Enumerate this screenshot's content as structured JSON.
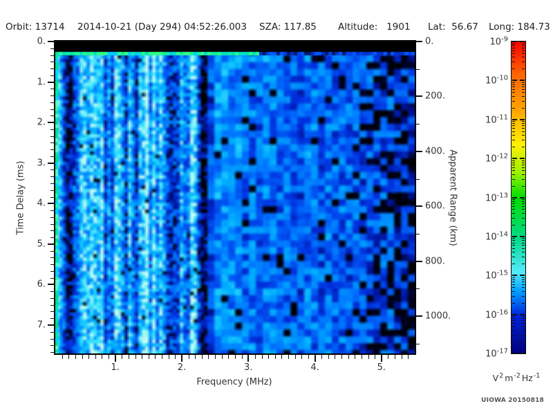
{
  "header": {
    "orbit": "Orbit: 13714",
    "datetime": "2014-10-21 (Day 294) 04:52:26.003",
    "sza": "SZA: 117.85",
    "altitude": "Altitude:   1901",
    "lat": "Lat:  56.67",
    "long": "Long: 184.73"
  },
  "axes": {
    "x": {
      "label": "Frequency (MHz)",
      "ticks": [
        "1.",
        "2.",
        "3.",
        "4.",
        "5."
      ],
      "tick_values": [
        1,
        2,
        3,
        4,
        5
      ],
      "range": [
        0.1,
        5.5
      ],
      "minor_step": 0.1
    },
    "y_left": {
      "label": "Time Delay (ms)",
      "ticks": [
        "0.",
        "1.",
        "2.",
        "3.",
        "4.",
        "5.",
        "6.",
        "7."
      ],
      "tick_values": [
        0,
        1,
        2,
        3,
        4,
        5,
        6,
        7
      ],
      "range": [
        0,
        7.7
      ],
      "minor_divisions": 6
    },
    "y_right": {
      "label": "Apparent Range (km)",
      "ticks": [
        "0.",
        "200.",
        "400.",
        "600.",
        "800.",
        "1000."
      ],
      "tick_values": [
        0,
        200,
        400,
        600,
        800,
        1000
      ],
      "range": [
        0,
        1136
      ],
      "minor_step": 100
    }
  },
  "colorbar": {
    "base": "10",
    "tick_exponents": [
      "-9",
      "-10",
      "-11",
      "-12",
      "-13",
      "-14",
      "-15",
      "-16",
      "-17"
    ],
    "scale": "log",
    "gradient_stops": [
      [
        0,
        "#ff0000"
      ],
      [
        0.1,
        "#ff6000"
      ],
      [
        0.22,
        "#ffa400"
      ],
      [
        0.33,
        "#fff000"
      ],
      [
        0.42,
        "#9cf000"
      ],
      [
        0.5,
        "#00dc00"
      ],
      [
        0.63,
        "#00da88"
      ],
      [
        0.74,
        "#55eaff"
      ],
      [
        0.8,
        "#00a0ff"
      ],
      [
        0.88,
        "#0020dd"
      ],
      [
        0.95,
        "#000f9e"
      ],
      [
        1,
        "#000080"
      ]
    ],
    "unit": {
      "v": "V",
      "v_exp": "2",
      "m": "m",
      "m_exp": "-2",
      "hz": "Hz",
      "hz_exp": "-1"
    }
  },
  "spectrogram": {
    "colormap": [
      [
        0,
        "#000000"
      ],
      [
        0.14,
        "#000d86"
      ],
      [
        0.3,
        "#0031e0"
      ],
      [
        0.48,
        "#0070ff"
      ],
      [
        0.66,
        "#00acff"
      ],
      [
        0.82,
        "#2ee2ff"
      ],
      [
        1,
        "#c8fff0"
      ]
    ],
    "top_band_color": "#000000",
    "calibration_row_greens": [
      "#11f29b",
      "#00e4c0",
      "#2dfc86",
      "#00cfff",
      "#33ff88"
    ],
    "calibration_row_blues": [
      "#0040e8",
      "#0030c8",
      "#0058ff",
      "#001a70"
    ],
    "left_edge_greens": [
      "#2af79f",
      "#00dd88",
      "#5cffc0",
      "#00e5a0",
      "#00d2ff"
    ]
  },
  "watermark": "UIOWA 20150818",
  "chart_data": {
    "type": "heatmap",
    "subtype": "radar-sounder-ionogram-spectrogram",
    "title": "Orbit: 13714   2014-10-21 (Day 294) 04:52:26.003   SZA: 117.85   Altitude: 1901   Lat: 56.67   Long: 184.73",
    "xlabel": "Frequency (MHz)",
    "xlim": [
      0.1,
      5.5
    ],
    "x_major_ticks": [
      1,
      2,
      3,
      4,
      5
    ],
    "ylabel_left": "Time Delay (ms)",
    "ylim_left": [
      0,
      7.7
    ],
    "y_left_major_ticks": [
      0,
      1,
      2,
      3,
      4,
      5,
      6,
      7
    ],
    "ylabel_right": "Apparent Range (km)",
    "ylim_right": [
      0,
      1136
    ],
    "y_right_major_ticks": [
      0,
      200,
      400,
      600,
      800,
      1000
    ],
    "colorbar_label": "V^2 m^-2 Hz^-1",
    "colorbar_range": [
      "1e-9",
      "1e-17"
    ],
    "colorbar_scale": "log",
    "grid": false,
    "legend": "colorbar-right",
    "features": [
      "black blanked band at 0 to ~0.25 ms delay across all frequencies",
      "bright green calibration row at ~0.27 ms for f < ~2.3 MHz",
      "bright green column at lowest frequency edge ~0.1 MHz",
      "dark attenuated vertical stripe near 0.3 MHz",
      "dark attenuated vertical stripe near 2.35 MHz",
      "bright cyan diffuse noise (~1e-15) from 0.1 to ~2.3 MHz with vertical streaks",
      "medium blue noise (~1e-16) from 2.4 to ~4.5 MHz",
      "dark blue/black speckled noise (<1e-16) above ~4.5 MHz"
    ]
  }
}
